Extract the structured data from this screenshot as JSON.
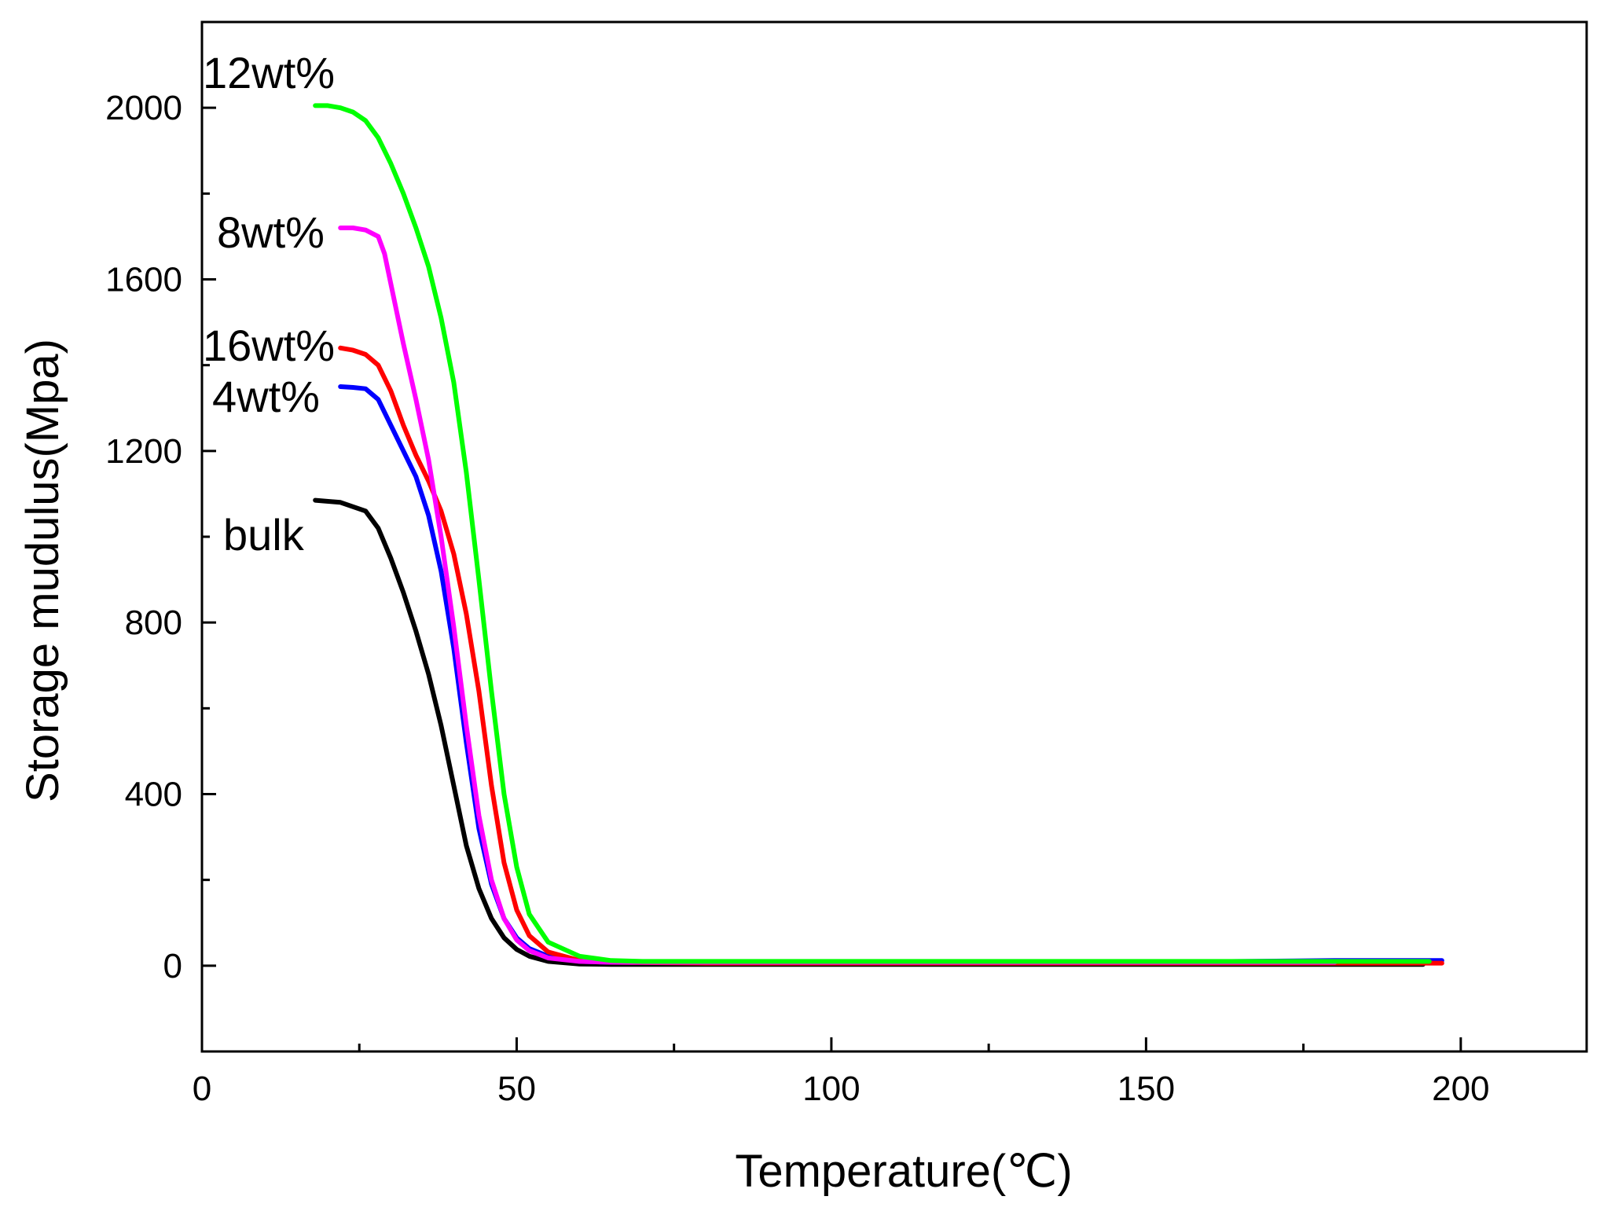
{
  "chart_data": {
    "type": "line",
    "title": "",
    "xlabel": "Temperature(℃)",
    "ylabel": "Storage mudulus(Mpa)",
    "xlim": [
      0,
      220
    ],
    "ylim": [
      -200,
      2200
    ],
    "xticks": [
      0,
      50,
      100,
      150,
      200
    ],
    "xtick_labels": [
      "0",
      "50",
      "100",
      "150",
      "200"
    ],
    "x_minor_ticks": [
      25,
      75,
      125,
      175
    ],
    "yticks": [
      0,
      400,
      800,
      1200,
      1600,
      2000
    ],
    "ytick_labels": [
      "0",
      "400",
      "800",
      "1200",
      "1600",
      "2000"
    ],
    "y_minor_ticks": [
      -200,
      200,
      600,
      1000,
      1400,
      1800
    ],
    "grid": false,
    "series": [
      {
        "name": "bulk",
        "color": "#000000",
        "x": [
          18,
          22,
          26,
          28,
          30,
          32,
          34,
          36,
          38,
          40,
          42,
          44,
          46,
          48,
          50,
          52,
          55,
          60,
          65,
          80,
          100,
          150,
          194
        ],
        "y": [
          1085,
          1080,
          1060,
          1020,
          950,
          870,
          780,
          680,
          560,
          420,
          280,
          180,
          110,
          65,
          38,
          22,
          10,
          4,
          3,
          3,
          3,
          3,
          3
        ]
      },
      {
        "name": "4wt%",
        "color": "#0000ff",
        "x": [
          22,
          24,
          26,
          28,
          30,
          32,
          34,
          36,
          38,
          40,
          42,
          44,
          46,
          48,
          50,
          52,
          55,
          60,
          65,
          80,
          100,
          150,
          180,
          197
        ],
        "y": [
          1350,
          1348,
          1345,
          1320,
          1260,
          1200,
          1140,
          1050,
          920,
          740,
          520,
          320,
          190,
          110,
          65,
          40,
          22,
          10,
          8,
          8,
          8,
          8,
          12,
          12
        ]
      },
      {
        "name": "16wt%",
        "color": "#ff0000",
        "x": [
          22,
          24,
          26,
          28,
          30,
          32,
          34,
          36,
          38,
          40,
          42,
          44,
          46,
          48,
          50,
          52,
          55,
          60,
          65,
          80,
          100,
          150,
          197
        ],
        "y": [
          1440,
          1435,
          1425,
          1400,
          1340,
          1260,
          1190,
          1130,
          1060,
          960,
          820,
          640,
          420,
          240,
          130,
          70,
          32,
          12,
          8,
          6,
          6,
          6,
          6
        ]
      },
      {
        "name": "8wt%",
        "color": "#ff00ff",
        "x": [
          22,
          24,
          26,
          28,
          29,
          30,
          32,
          34,
          36,
          38,
          40,
          42,
          44,
          46,
          48,
          50,
          52,
          55,
          60,
          65,
          80,
          100,
          150,
          180
        ],
        "y": [
          1720,
          1720,
          1715,
          1700,
          1660,
          1590,
          1450,
          1320,
          1180,
          1000,
          790,
          560,
          350,
          200,
          110,
          60,
          35,
          18,
          10,
          8,
          8,
          8,
          8,
          8
        ]
      },
      {
        "name": "12wt%",
        "color": "#00ff00",
        "x": [
          18,
          20,
          22,
          24,
          26,
          28,
          30,
          32,
          34,
          36,
          38,
          40,
          42,
          44,
          46,
          48,
          50,
          52,
          55,
          60,
          65,
          70,
          80,
          100,
          150,
          195
        ],
        "y": [
          2005,
          2005,
          2000,
          1990,
          1970,
          1930,
          1870,
          1800,
          1720,
          1630,
          1510,
          1360,
          1150,
          900,
          640,
          400,
          230,
          120,
          55,
          22,
          12,
          10,
          10,
          10,
          10,
          10
        ]
      }
    ],
    "annotations": [
      {
        "text": "12wt%",
        "series": "12wt%"
      },
      {
        "text": "8wt%",
        "series": "8wt%"
      },
      {
        "text": "16wt%",
        "series": "16wt%"
      },
      {
        "text": "4wt%",
        "series": "4wt%"
      },
      {
        "text": "bulk",
        "series": "bulk"
      }
    ]
  }
}
